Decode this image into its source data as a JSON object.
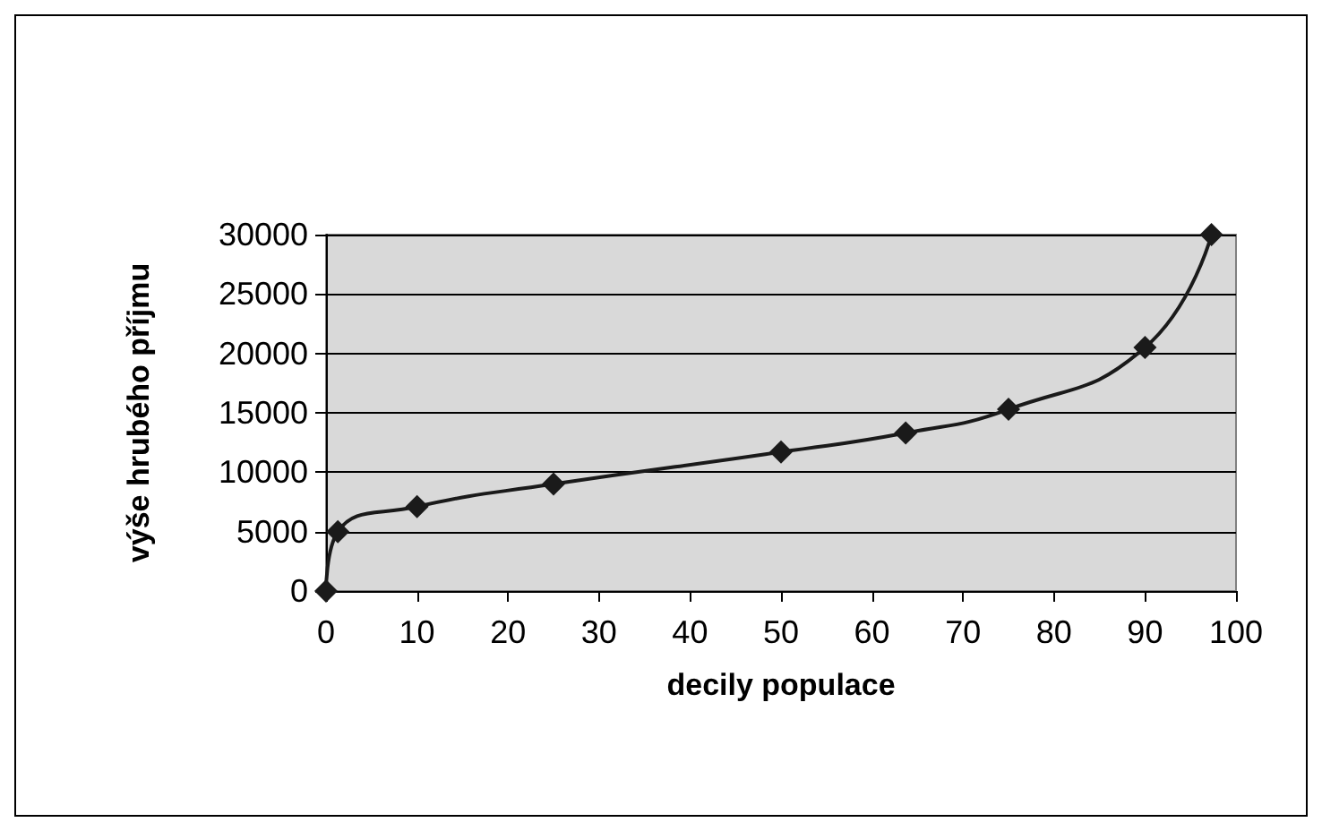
{
  "chart_data": {
    "type": "line",
    "xlabel": "decily populace",
    "ylabel": "výše hrubého příjmu",
    "x": [
      0,
      1.3,
      10,
      25,
      50,
      63.7,
      75,
      90,
      97.3
    ],
    "series": [
      {
        "color": "#1a1a1a",
        "values": [
          0,
          5000,
          7100,
          9000,
          11700,
          13300,
          15300,
          20500,
          30000
        ]
      }
    ],
    "xlim": [
      0,
      100
    ],
    "xticks": [
      0,
      10,
      20,
      30,
      40,
      50,
      60,
      70,
      80,
      90,
      100
    ],
    "ylim": [
      0,
      30000
    ],
    "yticks": [
      0,
      5000,
      10000,
      15000,
      20000,
      25000,
      30000
    ],
    "grid": "y",
    "marker": "diamond",
    "line_style": "solid"
  }
}
